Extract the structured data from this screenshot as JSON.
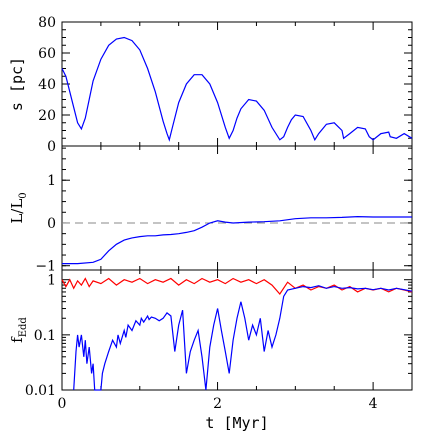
{
  "chart_data": {
    "type": "line",
    "x_axis": {
      "label": "t [Myr]",
      "range": [
        0,
        4.5
      ],
      "ticks": [
        0,
        2,
        4
      ],
      "tick_labels": [
        "0",
        "2",
        "4"
      ]
    },
    "panels": [
      {
        "ylabel": "s [pc]",
        "ylim": [
          0,
          80
        ],
        "yticks": [
          0,
          20,
          40,
          60,
          80
        ],
        "ytick_labels": [
          "0",
          "20",
          "40",
          "60",
          "80"
        ],
        "series": [
          {
            "color": "#0000ff",
            "x": [
              0.0,
              0.05,
              0.1,
              0.15,
              0.2,
              0.25,
              0.3,
              0.35,
              0.4,
              0.5,
              0.6,
              0.7,
              0.8,
              0.9,
              1.0,
              1.1,
              1.2,
              1.3,
              1.35,
              1.38,
              1.42,
              1.5,
              1.6,
              1.7,
              1.8,
              1.9,
              2.0,
              2.1,
              2.15,
              2.2,
              2.25,
              2.3,
              2.4,
              2.5,
              2.6,
              2.7,
              2.8,
              2.85,
              2.9,
              2.95,
              3.0,
              3.1,
              3.2,
              3.25,
              3.3,
              3.4,
              3.5,
              3.6,
              3.62,
              3.7,
              3.8,
              3.9,
              3.95,
              4.0,
              4.1,
              4.2,
              4.22,
              4.3,
              4.4,
              4.5
            ],
            "y": [
              50,
              45,
              35,
              25,
              15,
              11,
              18,
              30,
              42,
              56,
              65,
              69,
              70,
              68,
              62,
              50,
              35,
              16,
              8,
              4,
              12,
              28,
              40,
              46,
              46,
              40,
              28,
              12,
              5,
              10,
              18,
              24,
              30,
              29,
              23,
              12,
              4,
              6,
              12,
              17,
              20,
              19,
              10,
              4,
              8,
              14,
              15,
              10,
              5,
              8,
              12,
              11,
              6,
              4,
              8,
              9,
              6,
              5,
              8,
              5
            ]
          }
        ]
      },
      {
        "ylabel": "L/L0",
        "ylim": [
          -1.1,
          1.8
        ],
        "yticks": [
          -1,
          0,
          1
        ],
        "ytick_labels": [
          "−1",
          "0",
          "1"
        ],
        "reference_line": 0,
        "series": [
          {
            "color": "#0000ff",
            "x": [
              0.0,
              0.2,
              0.4,
              0.5,
              0.6,
              0.7,
              0.8,
              0.9,
              1.0,
              1.1,
              1.2,
              1.3,
              1.4,
              1.5,
              1.6,
              1.7,
              1.8,
              1.9,
              2.0,
              2.1,
              2.2,
              2.4,
              2.6,
              2.8,
              3.0,
              3.2,
              3.4,
              3.6,
              3.8,
              4.0,
              4.2,
              4.5
            ],
            "y": [
              -0.95,
              -0.95,
              -0.92,
              -0.85,
              -0.65,
              -0.5,
              -0.4,
              -0.35,
              -0.32,
              -0.3,
              -0.3,
              -0.28,
              -0.27,
              -0.25,
              -0.22,
              -0.18,
              -0.1,
              0.0,
              0.05,
              0.02,
              0.0,
              0.02,
              0.03,
              0.05,
              0.1,
              0.12,
              0.12,
              0.13,
              0.15,
              0.14,
              0.14,
              0.14
            ]
          }
        ]
      },
      {
        "ylabel": "fEdd",
        "log_y": true,
        "ylim": [
          0.01,
          1.5
        ],
        "yticks": [
          0.01,
          0.1,
          1
        ],
        "ytick_labels": [
          "0.01",
          "0.1",
          "1"
        ],
        "series": [
          {
            "color": "#ff0000",
            "x": [
              0.0,
              0.05,
              0.1,
              0.15,
              0.2,
              0.25,
              0.3,
              0.35,
              0.4,
              0.5,
              0.6,
              0.7,
              0.8,
              0.9,
              1.0,
              1.1,
              1.2,
              1.3,
              1.4,
              1.5,
              1.6,
              1.7,
              1.8,
              1.9,
              2.0,
              2.1,
              2.2,
              2.3,
              2.4,
              2.5,
              2.6,
              2.7,
              2.8,
              2.9,
              3.0,
              3.1,
              3.2,
              3.3,
              3.4,
              3.5,
              3.6,
              3.7,
              3.8,
              3.9,
              4.0,
              4.1,
              4.2,
              4.3,
              4.4,
              4.5
            ],
            "y": [
              1.0,
              0.75,
              1.0,
              0.7,
              0.95,
              0.8,
              1.05,
              0.75,
              0.95,
              0.85,
              1.05,
              0.8,
              1.0,
              0.9,
              1.05,
              0.85,
              1.0,
              0.9,
              1.05,
              0.8,
              1.0,
              0.85,
              1.05,
              0.9,
              1.0,
              0.85,
              1.05,
              0.9,
              1.0,
              0.85,
              1.0,
              0.8,
              0.55,
              0.9,
              0.7,
              0.8,
              0.65,
              0.75,
              0.7,
              0.8,
              0.65,
              0.75,
              0.6,
              0.7,
              0.65,
              0.7,
              0.6,
              0.7,
              0.65,
              0.6
            ]
          },
          {
            "color": "#0000ff",
            "x": [
              0.15,
              0.18,
              0.2,
              0.22,
              0.25,
              0.28,
              0.3,
              0.32,
              0.35,
              0.38,
              0.4,
              0.42,
              0.45,
              0.48,
              0.5,
              0.52,
              0.55,
              0.6,
              0.65,
              0.7,
              0.72,
              0.75,
              0.8,
              0.82,
              0.85,
              0.9,
              0.95,
              1.0,
              1.02,
              1.05,
              1.1,
              1.12,
              1.15,
              1.2,
              1.25,
              1.3,
              1.35,
              1.4,
              1.45,
              1.5,
              1.55,
              1.6,
              1.65,
              1.7,
              1.75,
              1.8,
              1.85,
              1.9,
              1.95,
              2.0,
              2.05,
              2.1,
              2.15,
              2.2,
              2.25,
              2.3,
              2.35,
              2.4,
              2.45,
              2.5,
              2.55,
              2.6,
              2.65,
              2.7,
              2.75,
              2.8,
              2.85,
              2.9,
              3.0,
              3.1,
              3.2,
              3.3,
              3.4,
              3.5,
              3.6,
              3.7,
              3.8,
              3.9,
              4.0,
              4.1,
              4.2,
              4.3,
              4.4,
              4.5
            ],
            "y": [
              0.01,
              0.05,
              0.1,
              0.06,
              0.1,
              0.04,
              0.08,
              0.03,
              0.06,
              0.02,
              0.03,
              0.01,
              0.01,
              0.01,
              0.01,
              0.02,
              0.03,
              0.05,
              0.08,
              0.06,
              0.1,
              0.07,
              0.12,
              0.09,
              0.15,
              0.12,
              0.18,
              0.15,
              0.2,
              0.17,
              0.22,
              0.19,
              0.21,
              0.2,
              0.18,
              0.2,
              0.25,
              0.22,
              0.05,
              0.15,
              0.28,
              0.02,
              0.05,
              0.08,
              0.12,
              0.04,
              0.01,
              0.06,
              0.15,
              0.3,
              0.12,
              0.05,
              0.02,
              0.08,
              0.2,
              0.4,
              0.2,
              0.08,
              0.15,
              0.1,
              0.2,
              0.05,
              0.12,
              0.06,
              0.1,
              0.2,
              0.5,
              0.65,
              0.7,
              0.75,
              0.72,
              0.78,
              0.7,
              0.75,
              0.7,
              0.72,
              0.68,
              0.7,
              0.66,
              0.7,
              0.65,
              0.7,
              0.66,
              0.62
            ]
          }
        ]
      }
    ]
  }
}
